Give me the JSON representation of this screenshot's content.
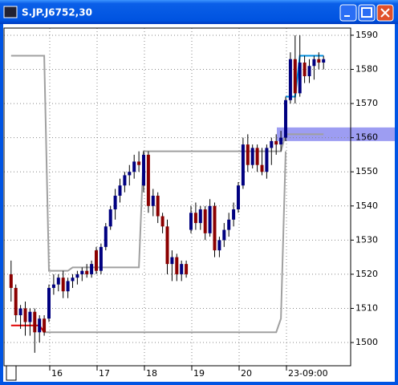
{
  "window": {
    "title": "S.JP.J6752,30"
  },
  "chart_data": {
    "type": "candlestick",
    "categories": [
      null,
      null,
      null,
      null,
      null,
      null,
      null,
      null,
      "16",
      null,
      null,
      null,
      null,
      null,
      null,
      null,
      null,
      null,
      "17",
      null,
      null,
      null,
      null,
      null,
      null,
      null,
      null,
      null,
      "18",
      null,
      null,
      null,
      null,
      null,
      null,
      null,
      null,
      null,
      "19",
      null,
      null,
      null,
      null,
      null,
      null,
      null,
      null,
      null,
      "20",
      null,
      null,
      null,
      null,
      null,
      null,
      null,
      null,
      null,
      "23-09:00",
      null,
      null,
      null,
      null,
      null,
      null,
      null,
      null
    ],
    "open": [
      1520,
      1516,
      1508,
      1510,
      1506,
      1509,
      1503,
      1507,
      1507,
      1516,
      1517,
      1519,
      1515,
      1518,
      1519,
      1520,
      1521,
      1520,
      1527,
      1521,
      1528,
      1534,
      1539,
      1543,
      1546,
      1549,
      1550,
      1553,
      1546,
      1555,
      1540,
      1543,
      1537,
      1534,
      1523,
      1525,
      1520,
      1523,
      1533,
      1538,
      1535,
      1539,
      1532,
      1540,
      1527,
      1530,
      1533,
      1536,
      1539,
      1546,
      1558,
      1552,
      1557,
      1552,
      1550,
      1557,
      1559,
      1558,
      1560,
      1571,
      1583,
      1573,
      1582,
      1578,
      1581,
      1583,
      1582
    ],
    "high": [
      1524,
      1517,
      1511,
      1512,
      1510,
      1510,
      1508,
      1508,
      1517,
      1520,
      1520,
      1521,
      1519,
      1520,
      1521,
      1522,
      1523,
      1524,
      1528,
      1529,
      1535,
      1540,
      1545,
      1548,
      1550,
      1552,
      1555,
      1556,
      1556,
      1556,
      1545,
      1544,
      1538,
      1536,
      1527,
      1526,
      1524,
      1524,
      1540,
      1541,
      1540,
      1540,
      1542,
      1541,
      1531,
      1535,
      1538,
      1541,
      1547,
      1560,
      1561,
      1558,
      1558,
      1557,
      1558,
      1560,
      1561,
      1562,
      1572,
      1585,
      1590,
      1590,
      1584,
      1583,
      1584,
      1585,
      1584
    ],
    "low": [
      1512,
      1506,
      1504,
      1502,
      1502,
      1497,
      1500,
      1502,
      1506,
      1514,
      1515,
      1513,
      1513,
      1516,
      1517,
      1518,
      1519,
      1519,
      1520,
      1520,
      1527,
      1533,
      1536,
      1541,
      1544,
      1546,
      1548,
      1550,
      1544,
      1538,
      1537,
      1535,
      1532,
      1520,
      1518,
      1518,
      1518,
      1519,
      1532,
      1533,
      1533,
      1530,
      1531,
      1525,
      1525,
      1528,
      1531,
      1534,
      1538,
      1545,
      1550,
      1551,
      1550,
      1549,
      1548,
      1552,
      1555,
      1556,
      1559,
      1570,
      1570,
      1572,
      1576,
      1576,
      1577,
      1580,
      1580
    ],
    "close": [
      1516,
      1508,
      1510,
      1506,
      1509,
      1503,
      1507,
      1503,
      1516,
      1517,
      1519,
      1515,
      1518,
      1519,
      1520,
      1521,
      1520,
      1523,
      1521,
      1528,
      1534,
      1539,
      1543,
      1546,
      1549,
      1550,
      1553,
      1552,
      1555,
      1540,
      1543,
      1537,
      1534,
      1523,
      1525,
      1520,
      1523,
      1520,
      1538,
      1535,
      1539,
      1532,
      1540,
      1527,
      1530,
      1533,
      1536,
      1539,
      1546,
      1558,
      1552,
      1557,
      1552,
      1550,
      1557,
      1559,
      1558,
      1560,
      1571,
      1583,
      1573,
      1582,
      1578,
      1581,
      1583,
      1582,
      1583
    ],
    "up_color": "#000080",
    "down_color": "#8b0000",
    "lines": [
      {
        "color": "#a0a0a0",
        "values": [
          1584,
          1584,
          1584,
          1584,
          1584,
          1584,
          1584,
          1584,
          1521,
          1521,
          1521,
          1521,
          1521,
          1522,
          1522,
          1522,
          1522,
          1522,
          1522,
          1522,
          1522,
          1522,
          1522,
          1522,
          1522,
          1522,
          1522,
          1522,
          1556,
          1556,
          1556,
          1556,
          1556,
          1556,
          1556,
          1556,
          1556,
          1556,
          1556,
          1556,
          1556,
          1556,
          1556,
          1556,
          1556,
          1556,
          1556,
          1556,
          1556,
          1556,
          1556,
          1556,
          1556,
          1556,
          1556,
          1556,
          1556,
          1556,
          1561,
          1561,
          1561,
          1561,
          1561,
          1561,
          1561,
          1561,
          1561
        ]
      },
      {
        "color": "#a0a0a0",
        "values": [
          null,
          null,
          null,
          null,
          null,
          null,
          null,
          1503,
          1503,
          1503,
          1503,
          1503,
          1503,
          1503,
          1503,
          1503,
          1503,
          1503,
          1503,
          1503,
          1503,
          1503,
          1503,
          1503,
          1503,
          1503,
          1503,
          1503,
          1503,
          1503,
          1503,
          1503,
          1503,
          1503,
          1503,
          1503,
          1503,
          1503,
          1503,
          1503,
          1503,
          1503,
          1503,
          1503,
          1503,
          1503,
          1503,
          1503,
          1503,
          1503,
          1503,
          1503,
          1503,
          1503,
          1503,
          1503,
          1503,
          1507,
          1556,
          null,
          null,
          null,
          null,
          null,
          null,
          null,
          null
        ]
      },
      {
        "color": "#e00000",
        "values": [
          1505,
          1505,
          1505,
          1505,
          1505,
          1505,
          1505,
          1503,
          null,
          null,
          null,
          null,
          null,
          null,
          null,
          null,
          null,
          null,
          null,
          null,
          null,
          null,
          null,
          null,
          null,
          null,
          null,
          null,
          null,
          null,
          null,
          null,
          null,
          null,
          null,
          null,
          null,
          null,
          null,
          null,
          null,
          null,
          null,
          null,
          null,
          null,
          null,
          null,
          null,
          null,
          null,
          null,
          null,
          null,
          null,
          null,
          null,
          null,
          null,
          null,
          null,
          null,
          null,
          null,
          null,
          null,
          null
        ]
      },
      {
        "color": "#0090e0",
        "values": [
          null,
          null,
          null,
          null,
          null,
          null,
          null,
          null,
          null,
          null,
          null,
          null,
          null,
          null,
          null,
          null,
          null,
          null,
          null,
          null,
          null,
          null,
          null,
          null,
          null,
          null,
          null,
          null,
          null,
          null,
          null,
          null,
          null,
          null,
          null,
          null,
          null,
          null,
          null,
          null,
          null,
          null,
          null,
          null,
          null,
          null,
          null,
          null,
          null,
          null,
          null,
          null,
          null,
          null,
          null,
          null,
          null,
          null,
          1572,
          1572,
          1572,
          1584,
          1584,
          1584,
          1584,
          1584,
          1584
        ]
      }
    ],
    "band": {
      "from": 1559,
      "to": 1563,
      "color": "#8c8cf0"
    },
    "ylim": [
      1493.2,
      1592.1
    ],
    "yticks": [
      1500,
      1510,
      1520,
      1530,
      1540,
      1550,
      1560,
      1570,
      1580,
      1590
    ],
    "grid": true
  }
}
